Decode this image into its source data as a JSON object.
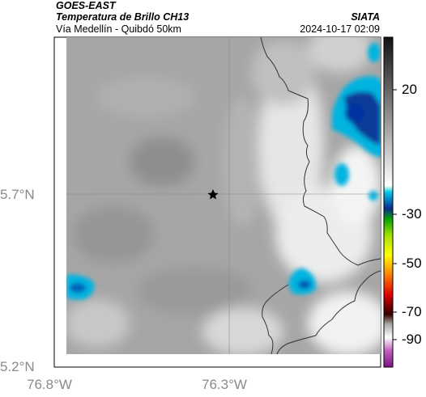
{
  "header": {
    "satellite": "GOES-EAST",
    "product": "Temperatura de Brillo CH13",
    "region": "Vía Medellín - Quibdó 50km",
    "org": "SIATA",
    "datetime": "2024-10-17 02:09"
  },
  "axes": {
    "lat_labels": [
      "5.7°N",
      "5.2°N"
    ],
    "lon_labels": [
      "76.8°W",
      "76.3°W"
    ]
  },
  "colorbar": {
    "labels": [
      "20",
      "-30",
      "-50",
      "-70",
      "-90"
    ]
  },
  "colors": {
    "cold_cloud": "#00b4e0",
    "deep_cold": "#0a3a9a",
    "gridline": "#888888"
  }
}
